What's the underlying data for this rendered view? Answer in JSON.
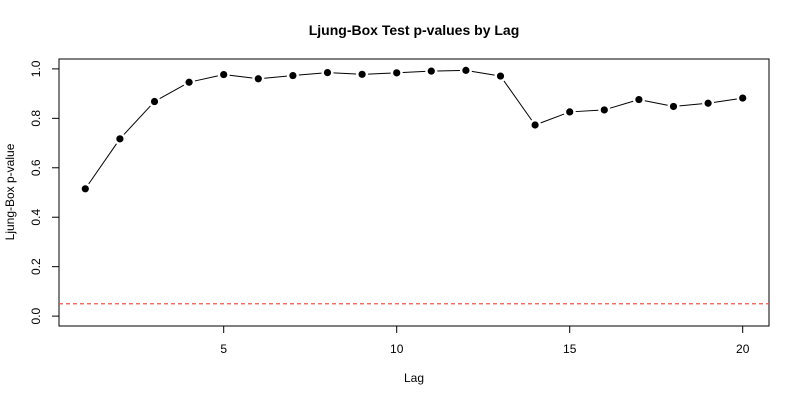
{
  "chart_data": {
    "type": "line",
    "title": "Ljung-Box Test p-values by Lag",
    "xlabel": "Lag",
    "ylabel": "Ljung-Box p-value",
    "xlim": [
      0.24,
      20.76
    ],
    "ylim": [
      -0.04,
      1.04
    ],
    "x_ticks": [
      5,
      10,
      15,
      20
    ],
    "y_ticks": [
      0.0,
      0.2,
      0.4,
      0.6,
      0.8,
      1.0
    ],
    "x_tick_labels": [
      "5",
      "10",
      "15",
      "20"
    ],
    "y_tick_labels": [
      "0.0",
      "0.2",
      "0.4",
      "0.6",
      "0.8",
      "1.0"
    ],
    "grid": false,
    "legend": "none",
    "series": [
      {
        "x": [
          1,
          2,
          3,
          4,
          5,
          6,
          7,
          8,
          9,
          10,
          11,
          12,
          13,
          14,
          15,
          16,
          17,
          18,
          19,
          20
        ],
        "values": [
          0.515,
          0.717,
          0.868,
          0.946,
          0.977,
          0.96,
          0.973,
          0.985,
          0.978,
          0.984,
          0.991,
          0.994,
          0.971,
          0.773,
          0.826,
          0.834,
          0.876,
          0.848,
          0.861,
          0.882
        ],
        "color": "#000000",
        "marker": "filled-circle"
      }
    ],
    "reference_line": {
      "y": 0.05,
      "color": "#e8584f",
      "style": "dashed"
    }
  }
}
